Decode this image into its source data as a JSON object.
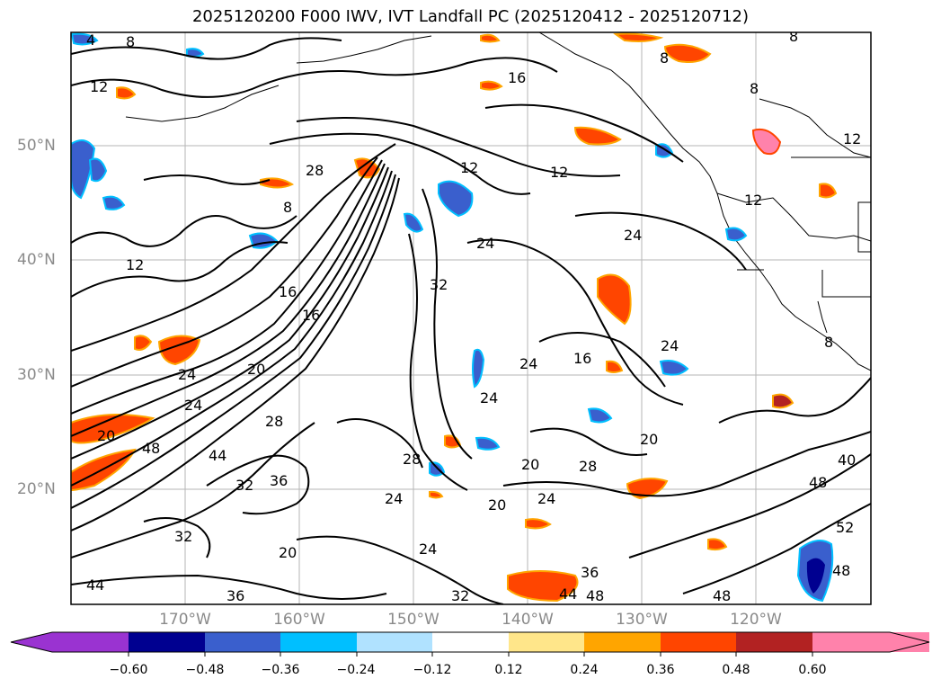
{
  "title": "2025120200 F000 IWV, IVT Landfall PC (2025120412 - 2025120712)",
  "map": {
    "lat_labels": [
      "50°N",
      "40°N",
      "30°N",
      "20°N"
    ],
    "lon_labels": [
      "170°W",
      "160°W",
      "150°W",
      "140°W",
      "130°W",
      "120°W"
    ],
    "contour_labels": [
      "4",
      "8",
      "8",
      "12",
      "12",
      "12",
      "12",
      "12",
      "16",
      "16",
      "16",
      "20",
      "20",
      "20",
      "20",
      "24",
      "24",
      "24",
      "24",
      "24",
      "24",
      "28",
      "28",
      "28",
      "32",
      "32",
      "32",
      "32",
      "36",
      "36",
      "40",
      "44",
      "44",
      "48",
      "48",
      "48",
      "48",
      "52",
      "8",
      "8",
      "24",
      "20",
      "24",
      "16",
      "24",
      "28",
      "36",
      "44",
      "48",
      "8",
      "8",
      "12",
      "24",
      "20"
    ],
    "colors": {
      "contour": "#000000",
      "coast": "#000000",
      "grid": "#b0b0b0",
      "ocean": "#ffffff"
    }
  },
  "colorbar": {
    "ticks": [
      "−0.60",
      "−0.48",
      "−0.36",
      "−0.24",
      "−0.12",
      "0.12",
      "0.24",
      "0.36",
      "0.48",
      "0.60"
    ],
    "colors": [
      "#9a33d1",
      "#000090",
      "#3a5fcd",
      "#00bfff",
      "#b0e2ff",
      "#ffffff",
      "#ffe68a",
      "#ffa500",
      "#ff4500",
      "#b22222",
      "#ff82ab"
    ]
  }
}
